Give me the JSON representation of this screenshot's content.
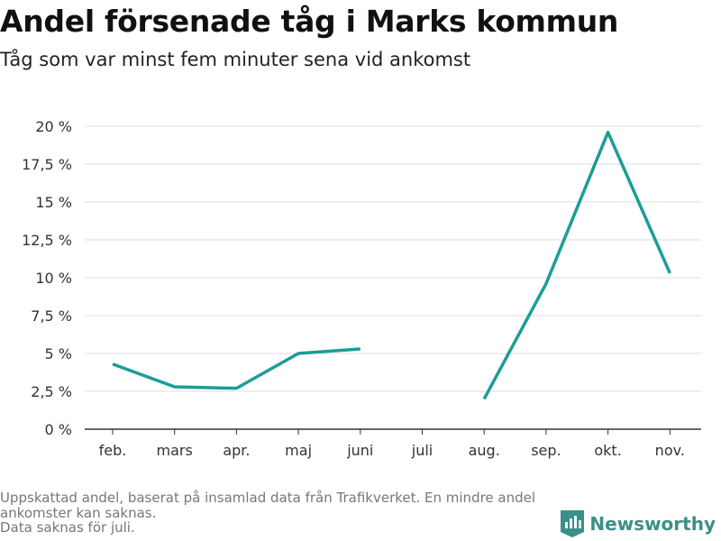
{
  "title": "Andel försenade tåg i Marks kommun",
  "subtitle": "Tåg som var minst fem minuter sena vid ankomst",
  "footnote": {
    "line1": "Uppskattad andel, baserat på insamlad data från Trafikverket. En mindre andel ankomster kan saknas.",
    "line2": "Data saknas för juli."
  },
  "logo": {
    "text": "Newsworthy",
    "icon": "newsworthy-logo-icon"
  },
  "colors": {
    "line": "#1a9e96",
    "grid": "#dddddd",
    "axis": "#333333",
    "logo": "#3c8f89"
  },
  "chart_data": {
    "type": "line",
    "title": "Andel försenade tåg i Marks kommun",
    "subtitle": "Tåg som var minst fem minuter sena vid ankomst",
    "xlabel": "",
    "ylabel": "",
    "categories": [
      "feb.",
      "mars",
      "apr.",
      "maj",
      "juni",
      "juli",
      "aug.",
      "sep.",
      "okt.",
      "nov."
    ],
    "series": [
      {
        "values": [
          4.3,
          2.8,
          2.7,
          5.0,
          5.3,
          null,
          2.0,
          9.6,
          19.6,
          10.3
        ]
      }
    ],
    "ylim": [
      0,
      20
    ],
    "yticks": [
      0,
      2.5,
      5,
      7.5,
      10,
      12.5,
      15,
      17.5,
      20
    ],
    "ytick_labels": [
      "0 %",
      "2,5 %",
      "5 %",
      "7,5 %",
      "10 %",
      "12,5 %",
      "15 %",
      "17,5 %",
      "20 %"
    ],
    "grid": true,
    "legend": "none"
  }
}
